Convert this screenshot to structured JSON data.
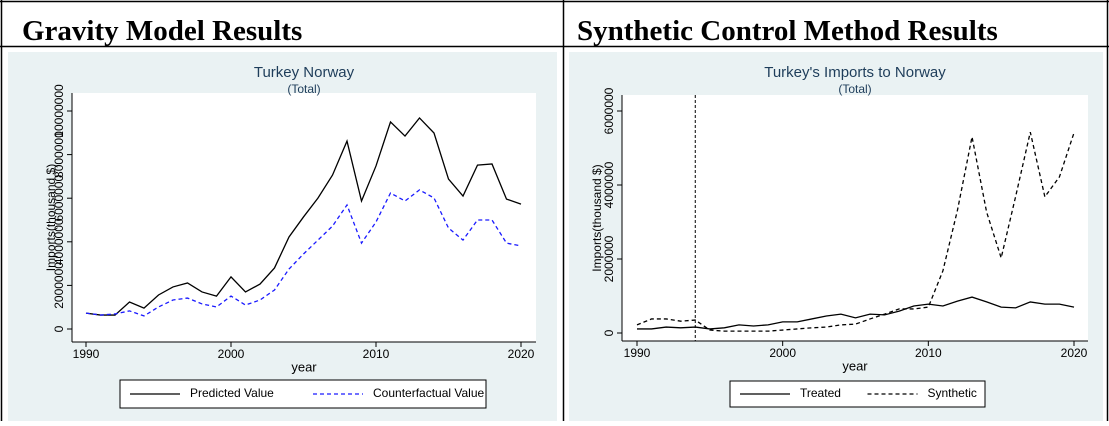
{
  "table": {
    "headers": [
      "Gravity Model Results",
      "Synthetic Control Method Results"
    ]
  },
  "chart_data": [
    {
      "type": "line",
      "title": "Turkey Norway",
      "subtitle": "(Total)",
      "x_label": "year",
      "y_label": "Imports(thousand $)",
      "x": [
        1990,
        1991,
        1992,
        1993,
        1994,
        1995,
        1996,
        1997,
        1998,
        1999,
        2000,
        2001,
        2002,
        2003,
        2004,
        2005,
        2006,
        2007,
        2008,
        2009,
        2010,
        2011,
        2012,
        2013,
        2014,
        2015,
        2016,
        2017,
        2018,
        2019,
        2020
      ],
      "xlim": [
        1990,
        2020
      ],
      "xticks": [
        1990,
        2000,
        2010,
        2020
      ],
      "ylim": [
        0,
        10000000
      ],
      "yticks": [
        0,
        2000000,
        4000000,
        6000000,
        8000000,
        10000000
      ],
      "series": [
        {
          "name": "Predicted Value",
          "color": "#000000",
          "style": "solid",
          "values": [
            730000,
            640000,
            640000,
            1240000,
            960000,
            1560000,
            1930000,
            2110000,
            1700000,
            1510000,
            2390000,
            1700000,
            2060000,
            2800000,
            4220000,
            5140000,
            6010000,
            7060000,
            8620000,
            5870000,
            7480000,
            9500000,
            8850000,
            9680000,
            8990000,
            6880000,
            6100000,
            7520000,
            7570000,
            5960000,
            5730000
          ]
        },
        {
          "name": "Counterfactual Value",
          "color": "#1a1aff",
          "style": "dash",
          "values": [
            730000,
            640000,
            690000,
            830000,
            600000,
            1010000,
            1330000,
            1420000,
            1150000,
            1010000,
            1510000,
            1100000,
            1330000,
            1790000,
            2750000,
            3440000,
            4080000,
            4720000,
            5690000,
            3940000,
            4910000,
            6240000,
            5870000,
            6380000,
            6010000,
            4630000,
            4080000,
            5000000,
            5000000,
            3940000,
            3810000
          ]
        }
      ]
    },
    {
      "type": "line",
      "title": "Turkey's Imports to Norway",
      "subtitle": "(Total)",
      "x_label": "year",
      "y_label": "Imports(thousand $)",
      "x": [
        1990,
        1991,
        1992,
        1993,
        1994,
        1995,
        1996,
        1997,
        1998,
        1999,
        2000,
        2001,
        2002,
        2003,
        2004,
        2005,
        2006,
        2007,
        2008,
        2009,
        2010,
        2011,
        2012,
        2013,
        2014,
        2015,
        2016,
        2017,
        2018,
        2019,
        2020
      ],
      "xlim": [
        1990,
        2020
      ],
      "xticks": [
        1990,
        2000,
        2010,
        2020
      ],
      "ylim": [
        0,
        6000000
      ],
      "yticks": [
        0,
        2000000,
        4000000,
        6000000
      ],
      "xline": 1994,
      "series": [
        {
          "name": "Treated",
          "color": "#000000",
          "style": "solid",
          "values": [
            110000,
            110000,
            160000,
            140000,
            160000,
            110000,
            140000,
            220000,
            190000,
            220000,
            300000,
            300000,
            380000,
            460000,
            510000,
            410000,
            510000,
            490000,
            590000,
            730000,
            780000,
            730000,
            860000,
            970000,
            840000,
            700000,
            680000,
            840000,
            780000,
            780000,
            700000
          ]
        },
        {
          "name": "Synthetic",
          "color": "#000000",
          "style": "dash",
          "values": [
            220000,
            380000,
            380000,
            320000,
            350000,
            80000,
            50000,
            50000,
            50000,
            50000,
            80000,
            110000,
            140000,
            160000,
            220000,
            240000,
            380000,
            510000,
            650000,
            650000,
            700000,
            1680000,
            3320000,
            5300000,
            3270000,
            2030000,
            3700000,
            5430000,
            3680000,
            4220000,
            5410000
          ]
        }
      ]
    }
  ]
}
